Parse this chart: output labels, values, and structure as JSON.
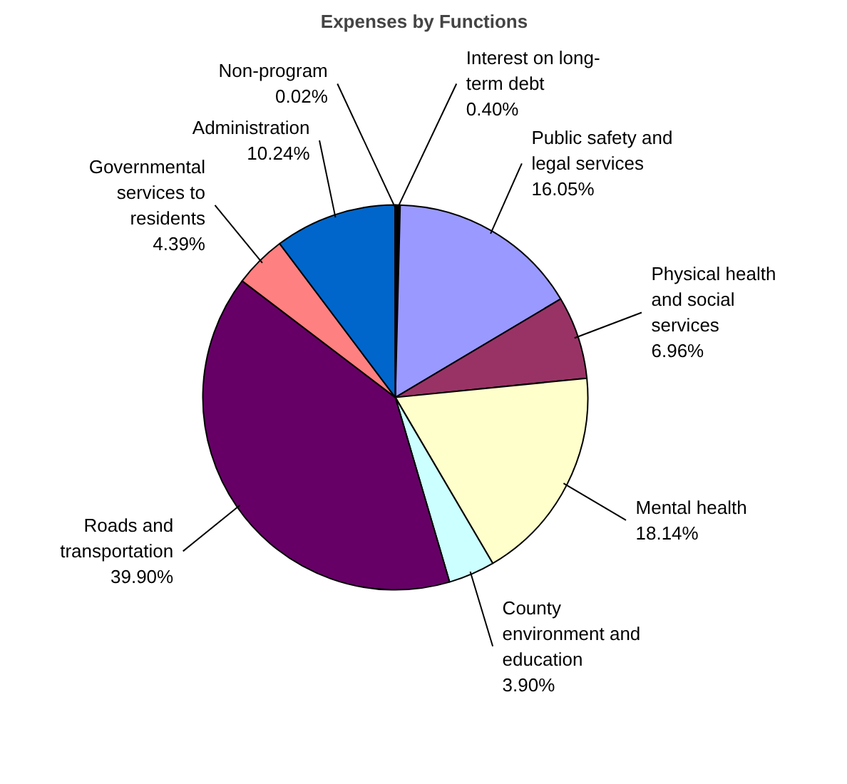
{
  "chart_data": {
    "type": "pie",
    "title": "Expenses by Functions",
    "categories": [
      "Interest on long-term debt",
      "Public safety and legal services",
      "Physical health and social services",
      "Mental health",
      "County environment and education",
      "Roads and transportation",
      "Governmental services to residents",
      "Administration",
      "Non-program"
    ],
    "values": [
      0.4,
      16.05,
      6.96,
      18.14,
      3.9,
      39.9,
      4.39,
      10.24,
      0.02
    ],
    "value_labels": [
      "0.40%",
      "16.05%",
      "6.96%",
      "18.14%",
      "3.90%",
      "39.90%",
      "4.39%",
      "10.24%",
      "0.02%"
    ],
    "colors": [
      "#000000",
      "#9999ff",
      "#993366",
      "#ffffcc",
      "#ccffff",
      "#660066",
      "#ff8080",
      "#0066cc",
      "#000080"
    ]
  }
}
